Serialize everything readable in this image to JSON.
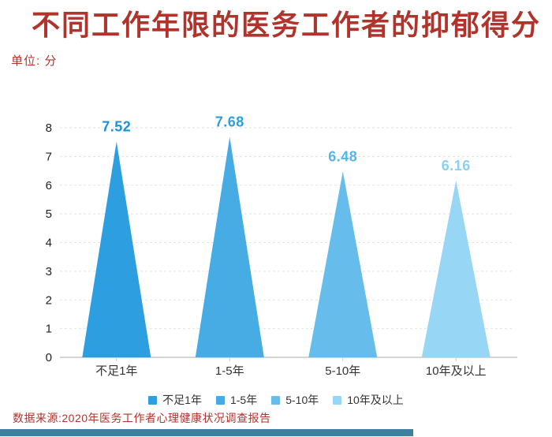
{
  "page": {
    "background": "#ffffff",
    "accent_red": "#b0342b",
    "footer_bar_color": "#3f7f9f"
  },
  "header": {
    "title": "不同工作年限的医务工作者的抑郁得分",
    "unit_label": "单位: 分"
  },
  "chart_data": {
    "type": "bar",
    "variant": "triangle-peaks",
    "title": "不同工作年限的医务工作者的抑郁得分",
    "xlabel": "",
    "ylabel": "分",
    "categories": [
      "不足1年",
      "1-5年",
      "5-10年",
      "10年及以上"
    ],
    "values": [
      7.52,
      7.68,
      6.48,
      6.16
    ],
    "value_labels": [
      "7.52",
      "7.68",
      "6.48",
      "6.16"
    ],
    "ylim": [
      0,
      8
    ],
    "yticks": [
      0,
      1,
      2,
      3,
      4,
      5,
      6,
      7,
      8
    ],
    "grid": "horizontal-dashed",
    "legend_position": "bottom",
    "series_colors": [
      "#2d9fe0",
      "#47abe4",
      "#66bdeb",
      "#97d6f4"
    ],
    "value_label_colors": [
      "#1e8fd5",
      "#2d9fe0",
      "#55b5e8",
      "#8ad0f2"
    ],
    "axis_text_color": "#222222",
    "category_text_color": "#333333",
    "grid_color": "#e2e2e2",
    "axis_line_color": "#d5d5d5"
  },
  "legend": {
    "items": [
      {
        "label": "不足1年",
        "color": "#2d9fe0"
      },
      {
        "label": "1-5年",
        "color": "#47abe4"
      },
      {
        "label": "5-10年",
        "color": "#66bdeb"
      },
      {
        "label": "10年及以上",
        "color": "#97d6f4"
      }
    ]
  },
  "footer": {
    "source": "数据来源:2020年医务工作者心理健康状况调查报告"
  }
}
